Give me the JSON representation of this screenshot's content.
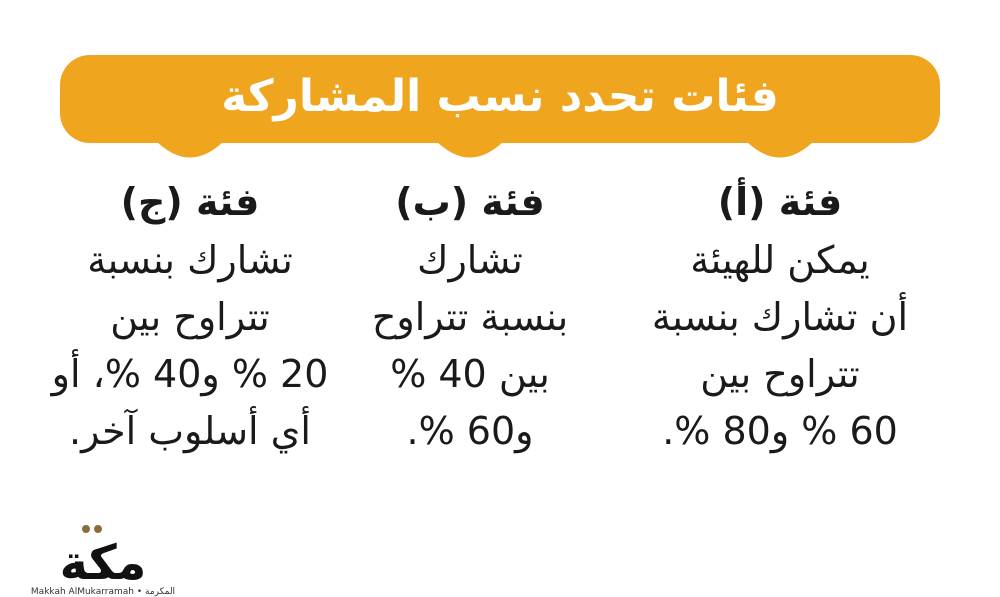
{
  "header": {
    "title": "فئات تحدد نسب المشاركة"
  },
  "columns": [
    {
      "heading": "فئة (أ)",
      "lines": [
        "يمكن للهيئة",
        "أن تشارك بنسبة",
        "تتراوح بين",
        "60 % و80 %."
      ]
    },
    {
      "heading": "فئة (ب)",
      "lines": [
        "تشارك",
        "بنسبة تتراوح",
        "بين 40 %",
        "و60 %."
      ]
    },
    {
      "heading": "فئة (ج)",
      "lines": [
        "تشارك بنسبة",
        "تتراوح بين",
        "20 % و40 %، أو",
        "أي أسلوب آخر."
      ]
    }
  ],
  "logo": {
    "name": "مكة",
    "tagline": "Makkah AlMukarramah",
    "tagline_ar": "المكرمة"
  }
}
